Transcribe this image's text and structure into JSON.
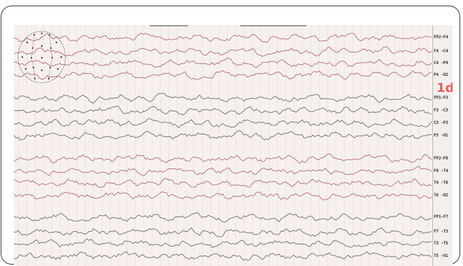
{
  "panel_id": "1d",
  "leads": [
    "FP2-F4",
    "F4 -C4",
    "C4 -P4",
    "P4 -O2",
    "FP1-F3",
    "F3 -C3",
    "C3 -P3",
    "P3 -O1",
    "FP2-F8",
    "F8 -T4",
    "T4 -T6",
    "T6 -O2",
    "FP1-F7",
    "F7 -T3",
    "T3 -T5",
    "T5 -O1"
  ],
  "colors": {
    "trace_red": "#b86a6a",
    "trace_dark": "#6b6b78",
    "panel_id": "#e8615b",
    "paper": "#f7f1ee"
  },
  "icons": {
    "head_map": "electrode-head-map-icon"
  }
}
